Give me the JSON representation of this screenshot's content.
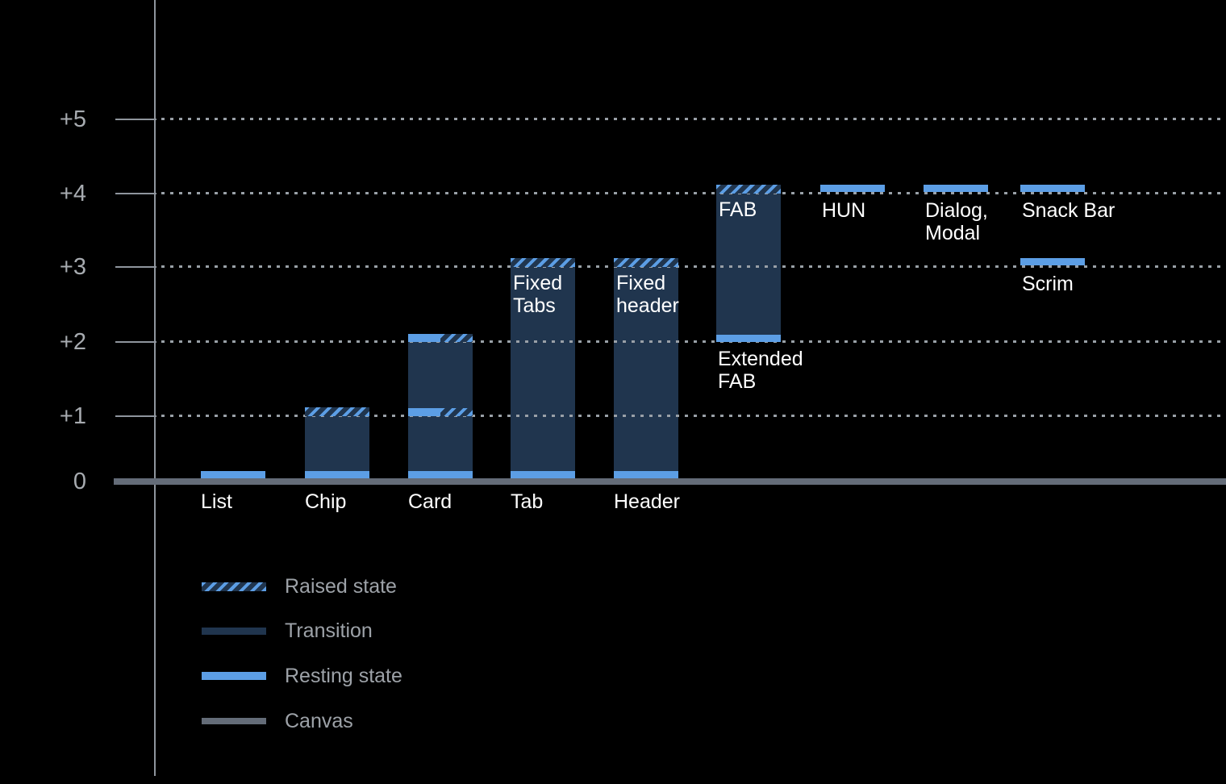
{
  "chart_data": {
    "type": "bar",
    "title": "",
    "y_axis": {
      "ticks": [
        {
          "label": "+5",
          "value": 5
        },
        {
          "label": "+4",
          "value": 4
        },
        {
          "label": "+3",
          "value": 3
        },
        {
          "label": "+2",
          "value": 2
        },
        {
          "label": "+1",
          "value": 1
        },
        {
          "label": "0",
          "value": 0
        }
      ],
      "range": [
        0,
        5
      ],
      "grid": "dotted"
    },
    "bars": [
      {
        "name": "list",
        "axis_label": "List",
        "bands": [
          {
            "level": 0,
            "type": "resting"
          }
        ]
      },
      {
        "name": "chip",
        "axis_label": "Chip",
        "transition": [
          0,
          1
        ],
        "bands": [
          {
            "level": 0,
            "type": "resting"
          },
          {
            "level": 1,
            "type": "raised"
          }
        ]
      },
      {
        "name": "card",
        "axis_label": "Card",
        "transition": [
          0,
          2
        ],
        "bands": [
          {
            "level": 0,
            "type": "resting"
          },
          {
            "level": 1,
            "type": "split"
          },
          {
            "level": 2,
            "type": "split"
          }
        ]
      },
      {
        "name": "tab",
        "axis_label": "Tab",
        "inner_label": [
          "Fixed",
          "Tabs"
        ],
        "transition": [
          0,
          3
        ],
        "bands": [
          {
            "level": 0,
            "type": "resting"
          },
          {
            "level": 3,
            "type": "raised"
          }
        ]
      },
      {
        "name": "header",
        "axis_label": "Header",
        "inner_label": [
          "Fixed",
          "header"
        ],
        "transition": [
          0,
          3
        ],
        "bands": [
          {
            "level": 0,
            "type": "resting"
          },
          {
            "level": 3,
            "type": "raised"
          }
        ]
      },
      {
        "name": "fab",
        "inner_label": [
          "FAB"
        ],
        "below_label": [
          "Extended",
          "FAB"
        ],
        "below_at": 2,
        "transition": [
          2,
          4
        ],
        "bands": [
          {
            "level": 2,
            "type": "resting"
          },
          {
            "level": 4,
            "type": "raised"
          }
        ]
      },
      {
        "name": "hun",
        "below_label": [
          "HUN"
        ],
        "below_at": 4,
        "bands": [
          {
            "level": 4,
            "type": "resting"
          }
        ]
      },
      {
        "name": "dialog-modal",
        "below_label": [
          "Dialog,",
          "Modal"
        ],
        "below_at": 4,
        "bands": [
          {
            "level": 4,
            "type": "resting"
          }
        ]
      },
      {
        "name": "snack-bar",
        "below_label": [
          "Snack Bar"
        ],
        "below_at": 4,
        "bands": [
          {
            "level": 4,
            "type": "resting"
          }
        ]
      },
      {
        "name": "scrim",
        "below_label": [
          "Scrim"
        ],
        "below_at": 3,
        "bands": [
          {
            "level": 3,
            "type": "resting"
          }
        ]
      }
    ],
    "legend": [
      {
        "swatch": "raised",
        "label": "Raised state"
      },
      {
        "swatch": "transition",
        "label": "Transition"
      },
      {
        "swatch": "resting",
        "label": "Resting state"
      },
      {
        "swatch": "canvas",
        "label": "Canvas"
      }
    ],
    "legend_position": "bottom-left",
    "colors": {
      "background": "#000000",
      "transition": "#20354E",
      "resting": "#5C9EE5",
      "raised_stripe": "#5C9EE5",
      "canvas": "#646C78"
    }
  }
}
